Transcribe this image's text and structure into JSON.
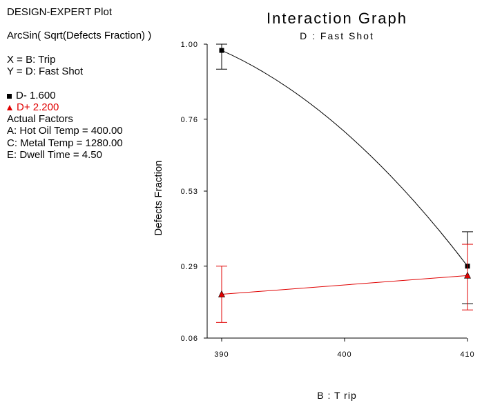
{
  "sidebar": {
    "plot_label": "DESIGN-EXPERT Plot",
    "response": "ArcSin( Sqrt(Defects Fraction) )",
    "x_def": "X = B: Trip",
    "y_def": "Y = D: Fast Shot",
    "legend_low": "D- 1.600",
    "legend_high": "D+ 2.200",
    "actual_factors_heading": "Actual Factors",
    "factor_a": "A: Hot Oil Temp = 400.00",
    "factor_c": "C: Metal Temp = 1280.00",
    "factor_e": "E: Dwell Time = 4.50"
  },
  "chart_data": {
    "type": "line",
    "title": "Interaction Graph",
    "subtitle": "D : Fast Shot",
    "xlabel": "B : T rip",
    "ylabel": "Defects Fraction",
    "x": [
      390,
      410
    ],
    "x_ticks": [
      "390",
      "400",
      "410"
    ],
    "x_tick_values": [
      390,
      400,
      410
    ],
    "y_ticks": [
      "0.06",
      "0.29",
      "0.53",
      "0.76",
      "1.00"
    ],
    "y_tick_values": [
      0.06,
      0.29,
      0.53,
      0.76,
      1.0
    ],
    "xlim": [
      390,
      410
    ],
    "ylim": [
      0.06,
      1.0
    ],
    "grid": false,
    "series": [
      {
        "name": "D- 1.600",
        "color": "#000000",
        "marker": "square",
        "curve": "quadratic",
        "values": [
          0.98,
          0.29
        ],
        "error_low": [
          0.92,
          0.17
        ],
        "error_high": [
          1.0,
          0.4
        ],
        "midpoint": 0.72
      },
      {
        "name": "D+ 2.200",
        "color": "#e00000",
        "marker": "triangle",
        "curve": "linear",
        "values": [
          0.2,
          0.26
        ],
        "error_low": [
          0.11,
          0.15
        ],
        "error_high": [
          0.29,
          0.36
        ]
      }
    ]
  }
}
